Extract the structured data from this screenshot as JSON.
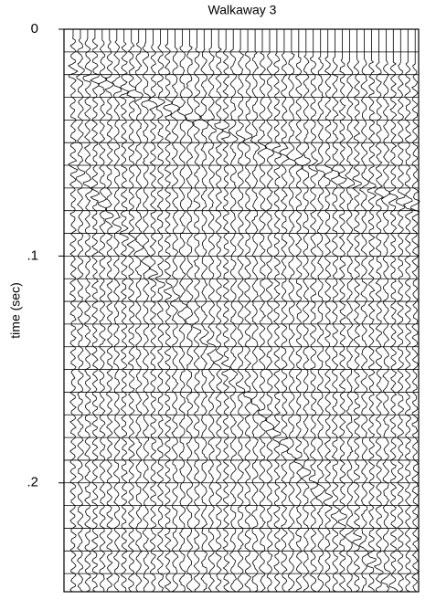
{
  "chart_data": {
    "type": "seismic",
    "title": "Walkaway 3",
    "y_label": "time (sec)",
    "ylim": [
      0,
      0.248
    ],
    "yticks": [
      0,
      {
        "value": 0.1,
        "label": ".1"
      },
      {
        "value": 0.2,
        "label": ".2"
      }
    ],
    "y_inverted": true,
    "color": "#000000"
  }
}
